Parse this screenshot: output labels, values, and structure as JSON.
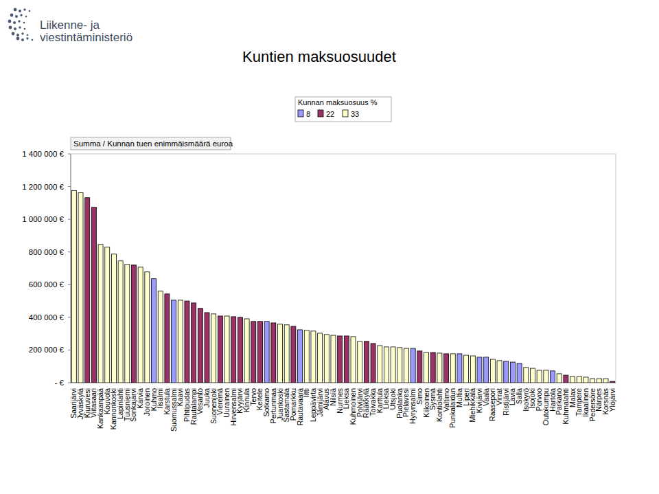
{
  "chart_data": {
    "type": "bar",
    "title": "Kuntien maksuosuudet",
    "logo_text": [
      "Liikenne- ja",
      "viestintäministeriö"
    ],
    "y_label": "Summa / Kunnan tuen enimmäismäärä euroa",
    "legend_title": "Kunnan maksuosuus %",
    "legend": "top",
    "grid": false,
    "stacked": false,
    "ylim": [
      0,
      1400000
    ],
    "yticks": [
      {
        "value": 0,
        "label": "-   €"
      },
      {
        "value": 200000,
        "label": "200 000 €"
      },
      {
        "value": 400000,
        "label": "400 000 €"
      },
      {
        "value": 600000,
        "label": "600 000 €"
      },
      {
        "value": 800000,
        "label": "800 000 €"
      },
      {
        "value": 1000000,
        "label": "1 000 000 €"
      },
      {
        "value": 1200000,
        "label": "1 200 000 €"
      },
      {
        "value": 1400000,
        "label": "1 400 000 €"
      }
    ],
    "categories": [
      "Saarijärvi",
      "Jyväskylä",
      "Kiuruvesi",
      "Viitasaari",
      "Kankaanpää",
      "Kouvola",
      "Kannonkoski",
      "Lapinlahti",
      "Tuusniemi",
      "Sonkajärvi",
      "Karvia",
      "Joroinen",
      "Kuhmo",
      "Iisalmi",
      "Karstula",
      "Suomussalmi",
      "Kaavi",
      "Pihtipudas",
      "Rautalampi",
      "Vesanto",
      "Juuka",
      "Suonenjoki",
      "Vieremä",
      "Uurainen",
      "Hirvensalmi",
      "Kyyjärvi",
      "Kinnula",
      "Tervo",
      "Keitele",
      "Sotkamo",
      "Pertunmaa",
      "Juankoski",
      "Sastamala",
      "Pomarkku",
      "Rautavaara",
      "Iitti",
      "Leppävirta",
      "Jämijärvi",
      "Alavus",
      "Nilsiä",
      "Nurmes",
      "Lieksa",
      "Kuhmoinen",
      "Polvijärvi",
      "Rääkkylä",
      "Toivakka",
      "Karttula",
      "Lieksa",
      "Utsjoki",
      "Puolanka",
      "Pielavesi",
      "Hyrynsalmi",
      "Simo",
      "Kiikoinen",
      "Sysmä",
      "Kontiolahti",
      "Valtimo",
      "Punkalaidun",
      "Multia",
      "Liperi",
      "Miehikkälä",
      "Kivijärvi",
      "Vaala",
      "Raasepori",
      "Virrat",
      "Ristijärvi",
      "Lavia",
      "Salla",
      "Isokyrö",
      "Isojoki",
      "Porvoo",
      "Outokumpu",
      "Hartola",
      "Parkano",
      "Kuhmalahti",
      "Malax",
      "Tampere",
      "Ikaalinen",
      "Pedersöre",
      "Närpes",
      "Korsnäs",
      "Ylöjärvi"
    ],
    "series": [
      {
        "name": "8",
        "color": "#9999ff",
        "values": [
          null,
          null,
          null,
          null,
          null,
          null,
          null,
          null,
          null,
          null,
          null,
          null,
          636000,
          null,
          null,
          505000,
          null,
          null,
          null,
          null,
          null,
          null,
          null,
          null,
          null,
          null,
          null,
          null,
          null,
          375000,
          null,
          null,
          null,
          null,
          324000,
          null,
          null,
          null,
          null,
          null,
          null,
          null,
          null,
          null,
          null,
          null,
          null,
          null,
          null,
          null,
          null,
          210000,
          null,
          null,
          null,
          null,
          null,
          null,
          177000,
          null,
          null,
          156000,
          156000,
          null,
          null,
          131000,
          126000,
          118000,
          null,
          null,
          null,
          null,
          72000,
          null,
          null,
          null,
          null,
          null,
          null,
          null,
          null,
          null
        ]
      },
      {
        "name": "22",
        "color": "#993366",
        "values": [
          null,
          null,
          1132000,
          1073000,
          null,
          null,
          null,
          null,
          null,
          720000,
          null,
          null,
          null,
          null,
          543000,
          null,
          null,
          500000,
          488000,
          455000,
          429000,
          null,
          408000,
          null,
          404000,
          400000,
          null,
          375000,
          375000,
          null,
          366000,
          null,
          null,
          345000,
          null,
          null,
          null,
          null,
          null,
          null,
          286000,
          286000,
          null,
          null,
          253000,
          240000,
          null,
          null,
          null,
          null,
          null,
          null,
          194000,
          null,
          185000,
          null,
          177000,
          null,
          null,
          null,
          null,
          null,
          null,
          null,
          null,
          null,
          null,
          null,
          null,
          null,
          null,
          null,
          null,
          null,
          46000,
          null,
          null,
          null,
          null,
          null,
          null,
          8000
        ]
      },
      {
        "name": "33",
        "color": "#ffffcc",
        "values": [
          1175000,
          1162000,
          null,
          null,
          846000,
          829000,
          787000,
          745000,
          724000,
          null,
          707000,
          678000,
          null,
          560000,
          null,
          null,
          505000,
          null,
          null,
          null,
          null,
          421000,
          null,
          408000,
          null,
          null,
          391000,
          null,
          null,
          null,
          null,
          358000,
          354000,
          null,
          null,
          320000,
          316000,
          303000,
          295000,
          290000,
          null,
          null,
          282000,
          253000,
          null,
          null,
          227000,
          219000,
          219000,
          215000,
          210000,
          null,
          null,
          185000,
          null,
          181000,
          null,
          177000,
          null,
          168000,
          164000,
          null,
          null,
          143000,
          135000,
          null,
          null,
          null,
          93000,
          88000,
          76000,
          76000,
          null,
          55000,
          null,
          38000,
          38000,
          34000,
          25000,
          25000,
          25000,
          null
        ]
      }
    ]
  }
}
